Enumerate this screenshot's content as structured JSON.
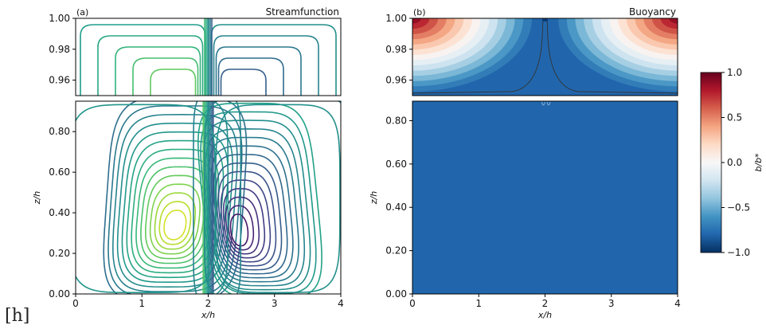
{
  "corner_text": "[h]",
  "chart_data": [
    {
      "type": "contour",
      "panel_label": "(a)",
      "title": "Streamfunction",
      "xlabel": "x/h",
      "ylabel": "z/h",
      "xlim": [
        0,
        4
      ],
      "xticks": [
        0,
        1,
        2,
        3,
        4
      ],
      "xtick_labels": [
        "0",
        "1",
        "2",
        "3",
        "4"
      ],
      "top_panel": {
        "ylim": [
          0.95,
          1.0
        ],
        "yticks": [
          0.96,
          0.98,
          1.0
        ],
        "ytick_labels": [
          "0.96",
          "0.98",
          "1.00"
        ]
      },
      "bottom_panel": {
        "ylim": [
          0.0,
          0.95
        ],
        "yticks": [
          0.0,
          0.2,
          0.4,
          0.6,
          0.8
        ],
        "ytick_labels": [
          "0.00",
          "0.20",
          "0.40",
          "0.60",
          "0.80"
        ]
      },
      "colormap": "viridis",
      "features": [
        {
          "kind": "cell",
          "center": [
            1.5,
            0.33
          ],
          "sign": "positive",
          "color": "#fde725"
        },
        {
          "kind": "cell",
          "center": [
            2.3,
            0.28
          ],
          "sign": "negative",
          "color": "#440154"
        },
        {
          "kind": "plume",
          "x": 2.0
        }
      ]
    },
    {
      "type": "heatmap",
      "panel_label": "(b)",
      "title": "Buoyancy",
      "xlabel": "x/h",
      "ylabel": "z/h",
      "xlim": [
        0,
        4
      ],
      "xticks": [
        0,
        1,
        2,
        3,
        4
      ],
      "xtick_labels": [
        "0",
        "1",
        "2",
        "3",
        "4"
      ],
      "top_panel": {
        "ylim": [
          0.95,
          1.0
        ],
        "yticks": [
          0.96,
          0.98,
          1.0
        ],
        "ytick_labels": [
          "0.96",
          "0.98",
          "1.00"
        ]
      },
      "bottom_panel": {
        "ylim": [
          0.0,
          0.89
        ],
        "yticks": [
          0.0,
          0.2,
          0.4,
          0.6,
          0.8
        ],
        "ytick_labels": [
          "0.00",
          "0.20",
          "0.40",
          "0.60",
          "0.80"
        ]
      },
      "interior_value": -0.8,
      "colorbar": {
        "label": "b/b*",
        "range": [
          -1.0,
          1.0
        ],
        "ticks": [
          1.0,
          0.5,
          0.0,
          -0.5,
          -1.0
        ],
        "tick_labels": [
          "1.0",
          "0.5",
          "0.0",
          "−0.5",
          "−1.0"
        ],
        "colormap": "RdBu_r",
        "stops": [
          "#053061",
          "#2166ac",
          "#4393c3",
          "#92c5de",
          "#d1e5f0",
          "#f7f7f7",
          "#fddbc7",
          "#f4a582",
          "#d6604d",
          "#b2182b",
          "#67001f"
        ]
      }
    }
  ]
}
